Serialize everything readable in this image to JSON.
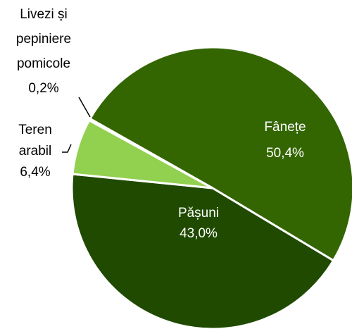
{
  "chart_data": {
    "type": "pie",
    "categories": [
      "Fânețe",
      "Pășuni",
      "Teren arabil",
      "Livezi și pepiniere pomicole"
    ],
    "values": [
      50.4,
      43.0,
      6.4,
      0.2
    ],
    "value_labels": [
      "50,4%",
      "43,0%",
      "6,4%",
      "0,2%"
    ],
    "colors": [
      "#336600",
      "#1f4a00",
      "#92d050",
      "#92d050"
    ]
  }
}
